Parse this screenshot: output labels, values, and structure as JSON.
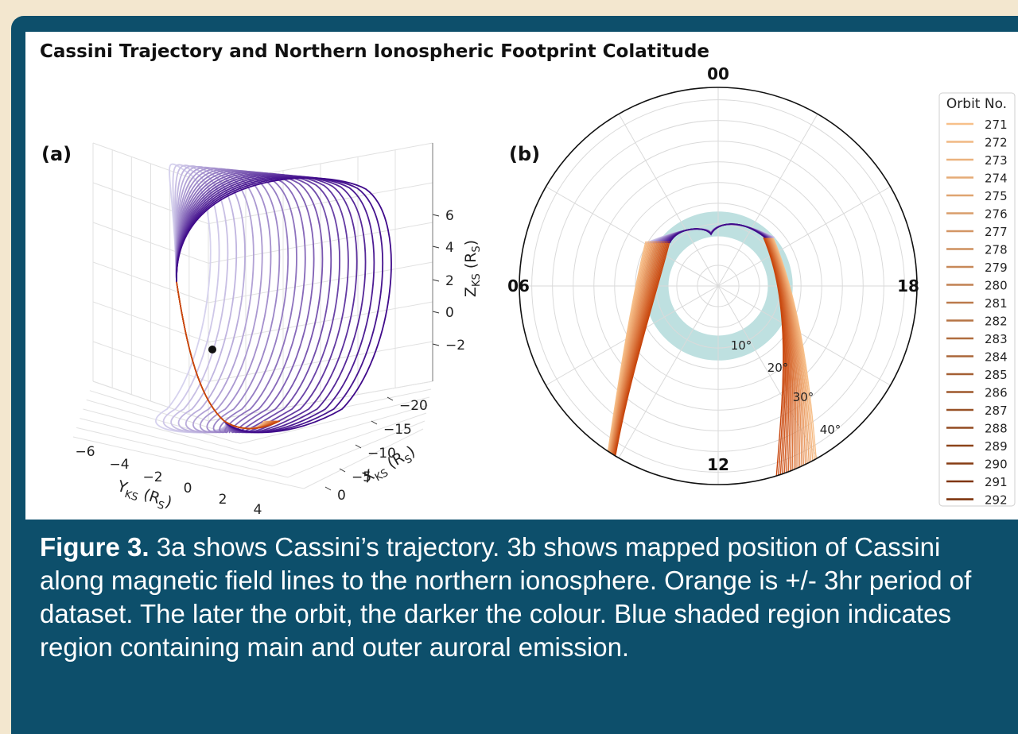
{
  "figure_title": "Cassini Trajectory and Northern Ionospheric Footprint Colatitude",
  "caption": {
    "label": "Figure 3.",
    "text": " 3a shows Cassini’s trajectory. 3b shows mapped position of Cassini along magnetic field lines to the  northern  ionosphere. Orange is +/- 3hr period of dataset. The later the orbit, the darker the colour. Blue shaded region indicates region containing main and outer auroral emission."
  },
  "colors": {
    "frame": "#0d4f6b",
    "background": "#f3e7cf",
    "orange_light": "#f7c08a",
    "orange_dark": "#c8450c",
    "purple_light": "#d6d2ee",
    "purple_dark": "#3f0a8a",
    "auroral_band": "#b3dada"
  },
  "chart_data": [
    {
      "panel_label": "(a)",
      "type": "line",
      "projection": "3d",
      "xlabel": "X",
      "xlabel_sub": "KS",
      "xlabel_unit": " (R",
      "xlabel_unit_sub": "S",
      "xlabel_close": ")",
      "ylabel": "Y",
      "ylabel_sub": "KS",
      "ylabel_unit": " (R",
      "ylabel_unit_sub": "S",
      "ylabel_close": ")",
      "zlabel": "Z",
      "zlabel_sub": "KS",
      "zlabel_unit": " (R",
      "zlabel_unit_sub": "S",
      "zlabel_close": ")",
      "y_ticks": [
        "−6",
        "−4",
        "−2",
        "0",
        "2",
        "4"
      ],
      "x_ticks": [
        "−20",
        "−15",
        "−10",
        "−5",
        "0"
      ],
      "z_ticks": [
        "6",
        "4",
        "2",
        "0",
        "−2"
      ],
      "ylim": [
        -7,
        5
      ],
      "xlim": [
        -22,
        1
      ],
      "zlim": [
        -3,
        7
      ],
      "grid": true,
      "n_orbits": 22,
      "colormap": "light-to-dark purple, orange segment = +/- 3hr window"
    },
    {
      "panel_label": "(b)",
      "type": "line",
      "projection": "polar",
      "local_time_labels": [
        "00",
        "06",
        "12",
        "18"
      ],
      "colatitude_labels": [
        "10°",
        "20°",
        "30°",
        "40°"
      ],
      "colatitude_max": 48,
      "auroral_band_colatitude": [
        12,
        18
      ],
      "grid": true,
      "legend": {
        "title": "Orbit No.",
        "placement": "right",
        "entries": [
          "271",
          "272",
          "273",
          "274",
          "275",
          "276",
          "277",
          "278",
          "279",
          "280",
          "281",
          "282",
          "283",
          "284",
          "285",
          "286",
          "287",
          "288",
          "289",
          "290",
          "291",
          "292"
        ]
      }
    }
  ]
}
